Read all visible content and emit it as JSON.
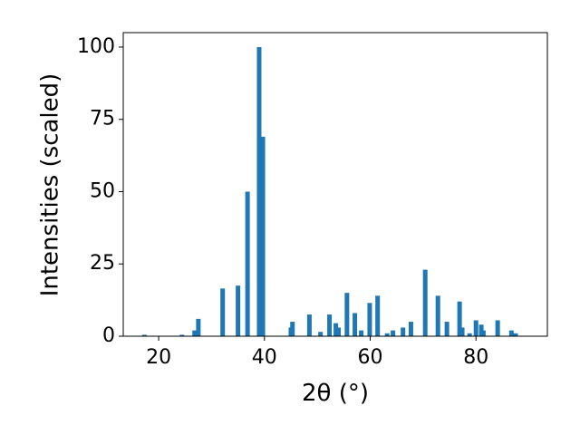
{
  "chart_data": {
    "type": "bar",
    "x_label": "2θ (°)",
    "y_label": "Intensities (scaled)",
    "x": [
      17.3,
      24.4,
      26.8,
      27.5,
      32.1,
      35.0,
      36.8,
      39.0,
      39.7,
      45.0,
      45.3,
      48.5,
      50.6,
      52.3,
      53.5,
      54.0,
      55.6,
      57.1,
      58.3,
      59.9,
      61.4,
      63.2,
      64.3,
      66.2,
      67.7,
      70.4,
      72.8,
      74.5,
      76.9,
      77.4,
      78.8,
      80.0,
      81.0,
      81.4,
      84.1,
      86.7,
      87.5
    ],
    "values": [
      0.5,
      0.5,
      2,
      6,
      16.5,
      17.5,
      50,
      100,
      69,
      3,
      5,
      7.5,
      1.5,
      7.5,
      4.5,
      3,
      15,
      8,
      2,
      11.5,
      14,
      1,
      2,
      3,
      5,
      23,
      14,
      5,
      12,
      3,
      1,
      5.5,
      4,
      2,
      5.5,
      2,
      1
    ],
    "color": "#1f77b4",
    "xlim": [
      13.3,
      93.5
    ],
    "xticks": [
      20,
      40,
      60,
      80
    ],
    "ylim": [
      0,
      105
    ],
    "yticks": [
      0,
      25,
      50,
      75,
      100
    ]
  }
}
